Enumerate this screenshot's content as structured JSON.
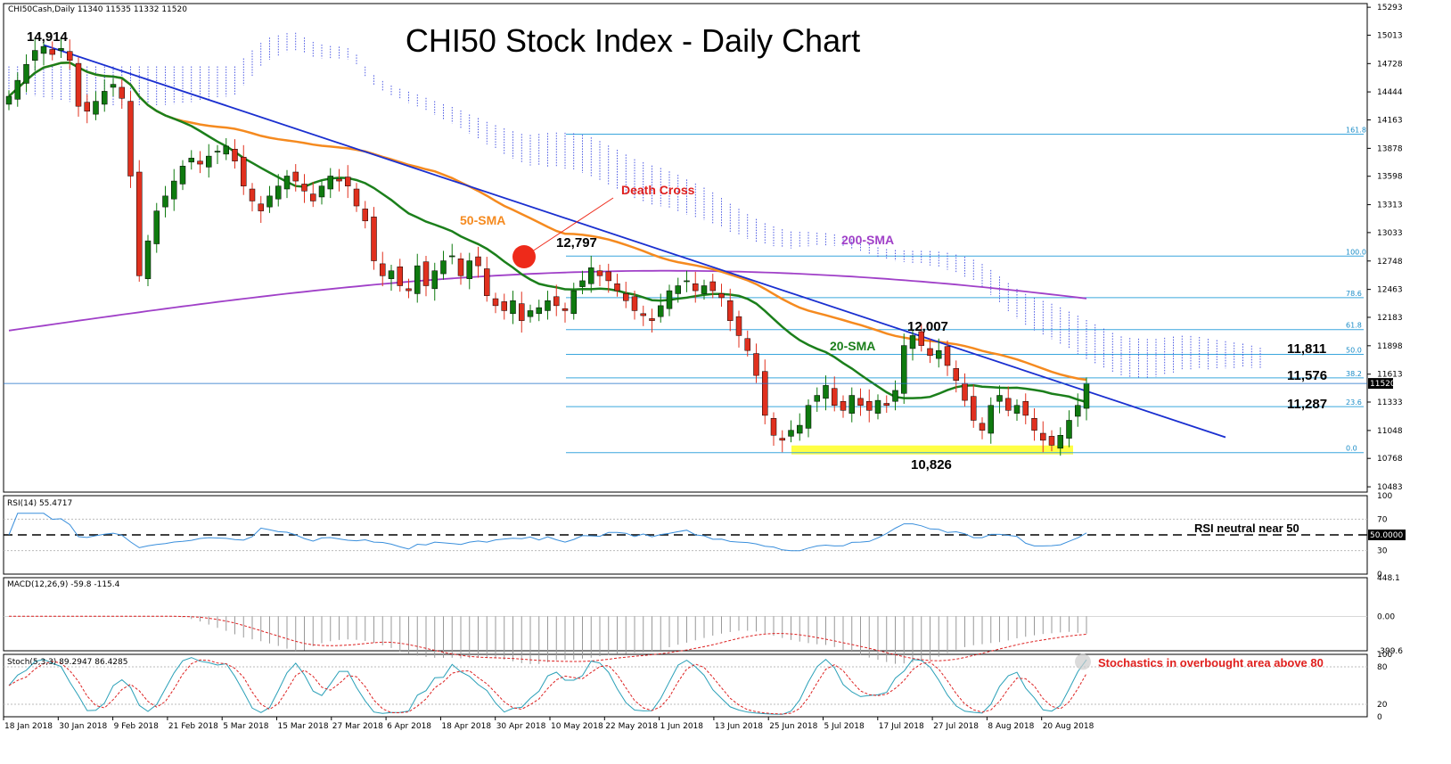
{
  "chart_data": {
    "type": "candlestick",
    "title": "CHI50 Stock Index - Daily Chart",
    "header": "CHI50Cash,Daily  11340 11535 11332 11520",
    "instrument": "CHI50Cash",
    "timeframe": "Daily",
    "last_bar": {
      "open": 11340,
      "high": 11535,
      "low": 11332,
      "close": 11520
    },
    "price_axis": {
      "ticks": [
        15293,
        15013,
        14728,
        14444,
        14163,
        13878,
        13598,
        13313,
        13033,
        12748,
        12463,
        12183,
        11898,
        11613,
        11333,
        11048,
        10768,
        10483
      ],
      "current_price_label": "11520",
      "ylim": [
        10430,
        15330
      ]
    },
    "date_axis": {
      "labels": [
        "18 Jan 2018",
        "30 Jan 2018",
        "9 Feb 2018",
        "21 Feb 2018",
        "5 Mar 2018",
        "15 Mar 2018",
        "27 Mar 2018",
        "6 Apr 2018",
        "18 Apr 2018",
        "30 Apr 2018",
        "10 May 2018",
        "22 May 2018",
        "1 Jun 2018",
        "13 Jun 2018",
        "25 Jun 2018",
        "5 Jul 2018",
        "17 Jul 2018",
        "27 Jul 2018",
        "8 Aug 2018",
        "20 Aug 2018"
      ]
    },
    "closes": [
      14400,
      14560,
      14720,
      14860,
      14900,
      14820,
      14880,
      14760,
      14300,
      14250,
      14350,
      14450,
      14520,
      14380,
      13600,
      12600,
      12950,
      13250,
      13400,
      13550,
      13700,
      13780,
      13720,
      13800,
      13850,
      13900,
      13750,
      13500,
      13350,
      13250,
      13400,
      13500,
      13600,
      13550,
      13450,
      13350,
      13500,
      13600,
      13550,
      13500,
      13300,
      13150,
      12750,
      12600,
      12650,
      12500,
      12450,
      12700,
      12500,
      12650,
      12750,
      12800,
      12600,
      12750,
      12700,
      12400,
      12300,
      12250,
      12350,
      12150,
      12250,
      12280,
      12350,
      12300,
      12250,
      12450,
      12550,
      12680,
      12600,
      12550,
      12450,
      12350,
      12250,
      12200,
      12150,
      12300,
      12450,
      12500,
      12550,
      12450,
      12500,
      12450,
      12380,
      12150,
      12000,
      11850,
      11600,
      11200,
      11000,
      10950,
      11050,
      11100,
      11300,
      11400,
      11500,
      11300,
      11250,
      11400,
      11300,
      11250,
      11350,
      11300,
      11450,
      11900,
      12000,
      11900,
      11800,
      11850,
      11700,
      11550,
      11350,
      11150,
      11050,
      11300,
      11400,
      11250,
      11300,
      11200,
      11050,
      10950,
      10900,
      11000,
      11150,
      11300,
      11520
    ],
    "fibonacci": [
      {
        "label": "161.8",
        "value": 14020
      },
      {
        "label": "100.0",
        "value": 12797
      },
      {
        "label": "78.6",
        "value": 12380
      },
      {
        "label": "61.8",
        "value": 12060
      },
      {
        "label": "50.0",
        "value": 11811
      },
      {
        "label": "38.2",
        "value": 11576
      },
      {
        "label": "23.6",
        "value": 11287
      },
      {
        "label": "0.0",
        "value": 10826
      }
    ],
    "levels": [
      {
        "label": "14,914",
        "value": 14914
      },
      {
        "label": "12,797",
        "value": 12797
      },
      {
        "label": "12,007",
        "value": 12007
      },
      {
        "label": "11,811",
        "value": 11811
      },
      {
        "label": "11,576",
        "value": 11576
      },
      {
        "label": "11,287",
        "value": 11287
      },
      {
        "label": "10,826",
        "value": 10826
      }
    ],
    "annotations": {
      "death_cross": "Death Cross",
      "sma50": "50-SMA",
      "sma200": "200-SMA",
      "sma20": "20-SMA"
    },
    "rsi": {
      "label": "RSI(14) 55.4717",
      "ticks": [
        "100",
        "70",
        "30",
        "0"
      ],
      "value_label": "50.0000",
      "note": "RSI neutral near 50",
      "ylim": [
        0,
        100
      ]
    },
    "macd": {
      "label": "MACD(12,26,9) -59.8 -115.4",
      "ticks": [
        "448.1",
        "0.00",
        "-399.6"
      ],
      "ylim": [
        -399.6,
        448.1
      ]
    },
    "stochastic": {
      "label": "Stoch(5,3,3) 89.2947 86.4285",
      "ticks": [
        "100",
        "80",
        "20",
        "0"
      ],
      "note": "Stochastics in overbought area above 80",
      "ylim": [
        0,
        100
      ]
    },
    "colors": {
      "up_candle": "#0f7a0f",
      "down_candle": "#e0301e",
      "sma20": "#1b7f1b",
      "sma50": "#f58a1f",
      "sma200": "#a040c8",
      "trendline": "#1a2fd0",
      "fib": "#3aa6dd",
      "cloud_blue": "#2233dd",
      "cloud_red": "#dd2222",
      "rsi": "#3a8fdc",
      "stoch_main": "#2aa0b8",
      "stoch_signal": "#dd2222",
      "support_band": "#ffff44",
      "death_cross_dot": "#ee2a1a"
    }
  }
}
